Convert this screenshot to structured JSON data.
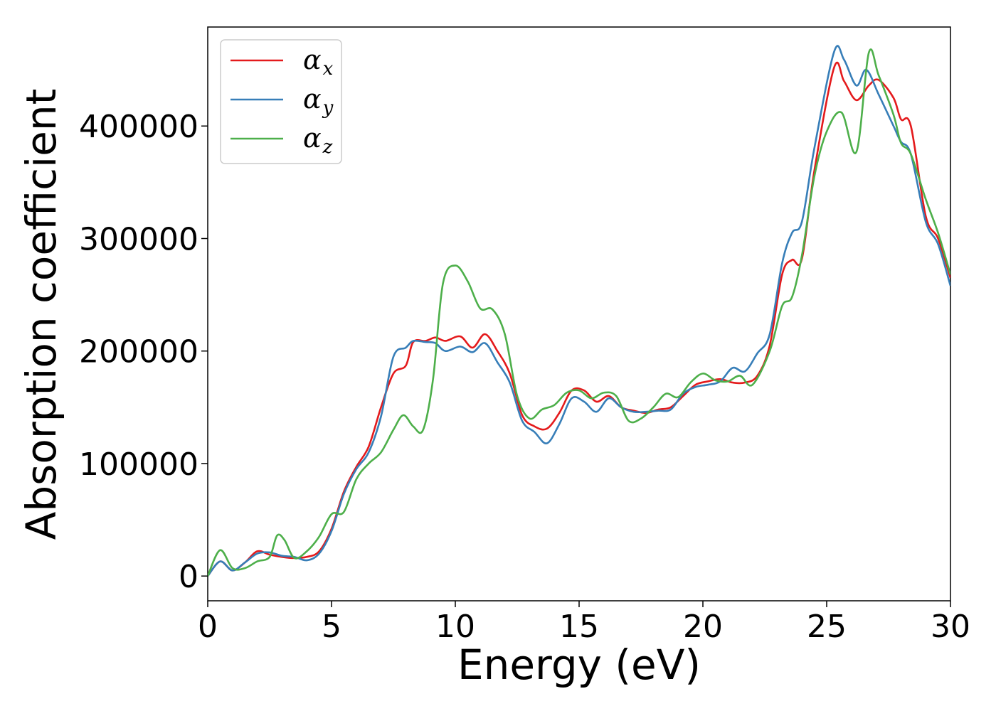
{
  "chart_data": {
    "type": "line",
    "title": "",
    "xlabel": "Energy (eV)",
    "ylabel": "Absorption coefficient",
    "xlim": [
      0,
      30
    ],
    "ylim": [
      -22000,
      488000
    ],
    "xticks": [
      0,
      5,
      10,
      15,
      20,
      25,
      30
    ],
    "yticks": [
      0,
      100000,
      200000,
      300000,
      400000
    ],
    "grid": false,
    "legend_position": "top-left",
    "series": [
      {
        "name": "αx",
        "symbol": "α",
        "subscript": "x",
        "color": "#e41a1c",
        "points": [
          [
            0,
            0
          ],
          [
            0.5,
            13000
          ],
          [
            1,
            5000
          ],
          [
            1.5,
            12000
          ],
          [
            2,
            22000
          ],
          [
            2.5,
            19000
          ],
          [
            3,
            17000
          ],
          [
            3.5,
            16000
          ],
          [
            4,
            17000
          ],
          [
            4.5,
            22000
          ],
          [
            5,
            42000
          ],
          [
            5.5,
            75000
          ],
          [
            6,
            97000
          ],
          [
            6.5,
            115000
          ],
          [
            7,
            150000
          ],
          [
            7.5,
            180000
          ],
          [
            8,
            187000
          ],
          [
            8.3,
            208000
          ],
          [
            8.8,
            209000
          ],
          [
            9.2,
            212000
          ],
          [
            9.6,
            209000
          ],
          [
            10.2,
            213000
          ],
          [
            10.7,
            203000
          ],
          [
            11.2,
            215000
          ],
          [
            11.7,
            200000
          ],
          [
            12.2,
            180000
          ],
          [
            12.7,
            143000
          ],
          [
            13.2,
            133000
          ],
          [
            13.7,
            131000
          ],
          [
            14.2,
            145000
          ],
          [
            14.7,
            165000
          ],
          [
            15.2,
            165000
          ],
          [
            15.7,
            155000
          ],
          [
            16.2,
            160000
          ],
          [
            16.7,
            150000
          ],
          [
            17.2,
            147000
          ],
          [
            17.7,
            145000
          ],
          [
            18.2,
            148000
          ],
          [
            18.7,
            150000
          ],
          [
            19.2,
            160000
          ],
          [
            19.7,
            170000
          ],
          [
            20.2,
            173000
          ],
          [
            20.7,
            175000
          ],
          [
            21.2,
            172000
          ],
          [
            21.7,
            172000
          ],
          [
            22.2,
            178000
          ],
          [
            22.7,
            205000
          ],
          [
            23.2,
            268000
          ],
          [
            23.6,
            281000
          ],
          [
            24,
            282000
          ],
          [
            24.5,
            360000
          ],
          [
            25.3,
            452000
          ],
          [
            25.7,
            440000
          ],
          [
            26.2,
            423000
          ],
          [
            26.7,
            436000
          ],
          [
            27.1,
            441000
          ],
          [
            27.7,
            425000
          ],
          [
            28,
            406000
          ],
          [
            28.4,
            400000
          ],
          [
            29,
            320000
          ],
          [
            29.5,
            300000
          ],
          [
            30,
            265000
          ]
        ]
      },
      {
        "name": "αy",
        "symbol": "α",
        "subscript": "y",
        "color": "#377eb8",
        "points": [
          [
            0,
            0
          ],
          [
            0.5,
            13000
          ],
          [
            1,
            5000
          ],
          [
            1.5,
            12000
          ],
          [
            2,
            20000
          ],
          [
            2.5,
            21000
          ],
          [
            3,
            18000
          ],
          [
            3.5,
            17000
          ],
          [
            4,
            14000
          ],
          [
            4.5,
            20000
          ],
          [
            5,
            40000
          ],
          [
            5.5,
            73000
          ],
          [
            6,
            95000
          ],
          [
            6.5,
            110000
          ],
          [
            7,
            142000
          ],
          [
            7.5,
            195000
          ],
          [
            8,
            203000
          ],
          [
            8.3,
            209000
          ],
          [
            8.8,
            208000
          ],
          [
            9.2,
            207000
          ],
          [
            9.6,
            200000
          ],
          [
            10.2,
            204000
          ],
          [
            10.7,
            199000
          ],
          [
            11.2,
            207000
          ],
          [
            11.7,
            190000
          ],
          [
            12.2,
            172000
          ],
          [
            12.7,
            138000
          ],
          [
            13.2,
            128000
          ],
          [
            13.7,
            118000
          ],
          [
            14.2,
            135000
          ],
          [
            14.7,
            158000
          ],
          [
            15.2,
            155000
          ],
          [
            15.7,
            146000
          ],
          [
            16.2,
            158000
          ],
          [
            16.7,
            150000
          ],
          [
            17.2,
            146000
          ],
          [
            17.7,
            146000
          ],
          [
            18.2,
            147000
          ],
          [
            18.7,
            148000
          ],
          [
            19.2,
            162000
          ],
          [
            19.7,
            168000
          ],
          [
            20.2,
            170000
          ],
          [
            20.7,
            173000
          ],
          [
            21.2,
            185000
          ],
          [
            21.7,
            182000
          ],
          [
            22.2,
            198000
          ],
          [
            22.7,
            215000
          ],
          [
            23.2,
            278000
          ],
          [
            23.6,
            305000
          ],
          [
            24,
            315000
          ],
          [
            24.5,
            380000
          ],
          [
            25.3,
            466000
          ],
          [
            25.7,
            459000
          ],
          [
            26.2,
            436000
          ],
          [
            26.6,
            450000
          ],
          [
            27.1,
            428000
          ],
          [
            27.7,
            400000
          ],
          [
            28,
            386000
          ],
          [
            28.4,
            375000
          ],
          [
            29,
            315000
          ],
          [
            29.5,
            295000
          ],
          [
            30,
            258000
          ]
        ]
      },
      {
        "name": "αz",
        "symbol": "α",
        "subscript": "z",
        "color": "#4daf4a",
        "points": [
          [
            0,
            0
          ],
          [
            0.5,
            23000
          ],
          [
            1,
            7000
          ],
          [
            1.5,
            7000
          ],
          [
            2,
            13000
          ],
          [
            2.5,
            17000
          ],
          [
            2.8,
            36000
          ],
          [
            3.1,
            32000
          ],
          [
            3.5,
            16000
          ],
          [
            4,
            22000
          ],
          [
            4.5,
            35000
          ],
          [
            5,
            55000
          ],
          [
            5.5,
            57000
          ],
          [
            6,
            86000
          ],
          [
            6.5,
            100000
          ],
          [
            7,
            110000
          ],
          [
            7.5,
            130000
          ],
          [
            7.9,
            143000
          ],
          [
            8.3,
            133000
          ],
          [
            8.7,
            130000
          ],
          [
            9.1,
            175000
          ],
          [
            9.5,
            260000
          ],
          [
            10,
            276000
          ],
          [
            10.5,
            262000
          ],
          [
            11,
            238000
          ],
          [
            11.5,
            237000
          ],
          [
            12,
            215000
          ],
          [
            12.5,
            160000
          ],
          [
            13,
            140000
          ],
          [
            13.5,
            148000
          ],
          [
            14,
            152000
          ],
          [
            14.5,
            163000
          ],
          [
            15,
            165000
          ],
          [
            15.5,
            158000
          ],
          [
            16,
            163000
          ],
          [
            16.5,
            160000
          ],
          [
            17,
            138000
          ],
          [
            17.5,
            140000
          ],
          [
            18,
            150000
          ],
          [
            18.5,
            162000
          ],
          [
            19,
            159000
          ],
          [
            19.5,
            172000
          ],
          [
            20,
            180000
          ],
          [
            20.5,
            174000
          ],
          [
            21,
            173000
          ],
          [
            21.5,
            178000
          ],
          [
            22,
            170000
          ],
          [
            22.7,
            200000
          ],
          [
            23.2,
            240000
          ],
          [
            23.6,
            248000
          ],
          [
            24,
            285000
          ],
          [
            24.5,
            355000
          ],
          [
            25,
            395000
          ],
          [
            25.6,
            412000
          ],
          [
            26.2,
            377000
          ],
          [
            26.7,
            465000
          ],
          [
            27.1,
            445000
          ],
          [
            27.7,
            410000
          ],
          [
            28,
            385000
          ],
          [
            28.4,
            375000
          ],
          [
            29,
            335000
          ],
          [
            29.5,
            305000
          ],
          [
            30,
            268000
          ]
        ]
      }
    ]
  }
}
